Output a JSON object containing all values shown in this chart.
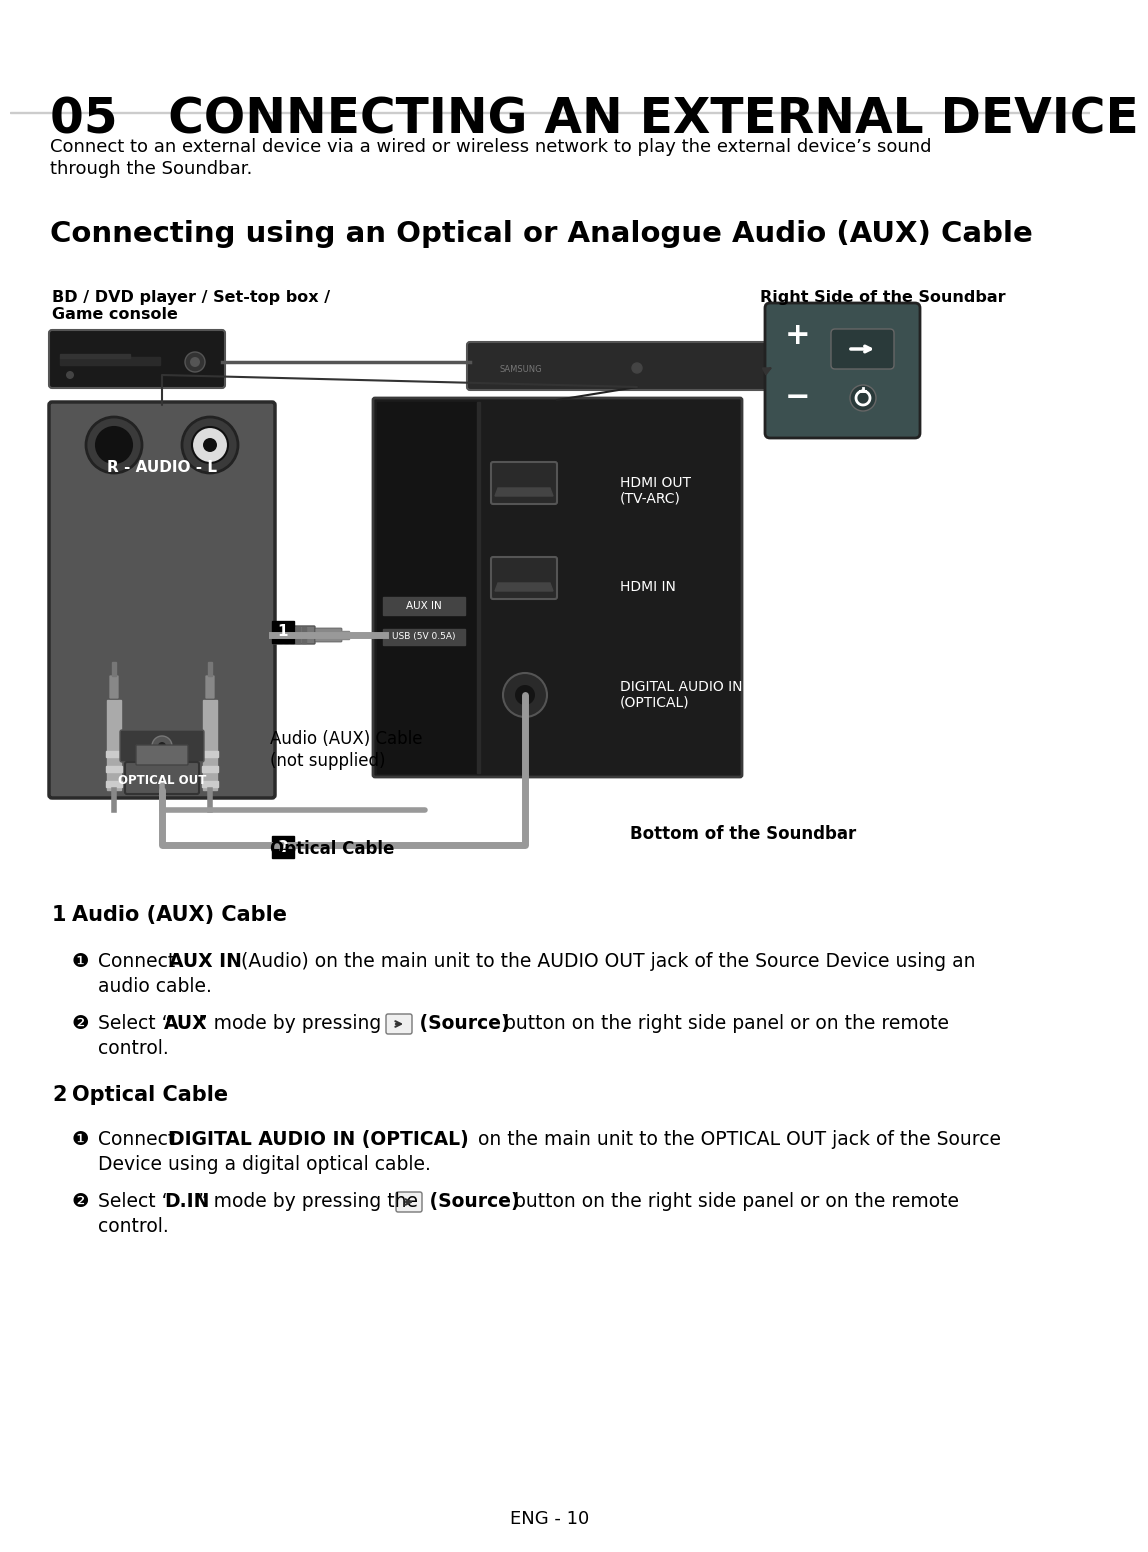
{
  "title": "05   CONNECTING AN EXTERNAL DEVICE",
  "subtitle": "Connecting using an Optical or Analogue Audio (AUX) Cable",
  "intro_line1": "Connect to an external device via a wired or wireless network to play the external device’s sound",
  "intro_line2": "through the Soundbar.",
  "label_bd_line1": "BD / DVD player / Set-top box /",
  "label_bd_line2": "Game console",
  "label_right_side": "Right Side of the Soundbar",
  "label_bottom": "Bottom of the Soundbar",
  "label_audio_cable": "Audio (AUX) Cable",
  "label_not_supplied": "(not supplied)",
  "label2": "Optical Cable",
  "label_audio_r": "R - AUDIO - L",
  "label_optical_out": "OPTICAL OUT",
  "label_aux_in": "AUX IN",
  "label_usb": "USB (5V 0.5A)",
  "label_hdmi_out_1": "HDMI OUT",
  "label_hdmi_out_2": "(TV-ARC)",
  "label_hdmi_in": "HDMI IN",
  "label_digital_1": "DIGITAL AUDIO IN",
  "label_digital_2": "(OPTICAL)",
  "footer": "ENG - 10",
  "bg_color": "#ffffff",
  "text_color": "#000000"
}
